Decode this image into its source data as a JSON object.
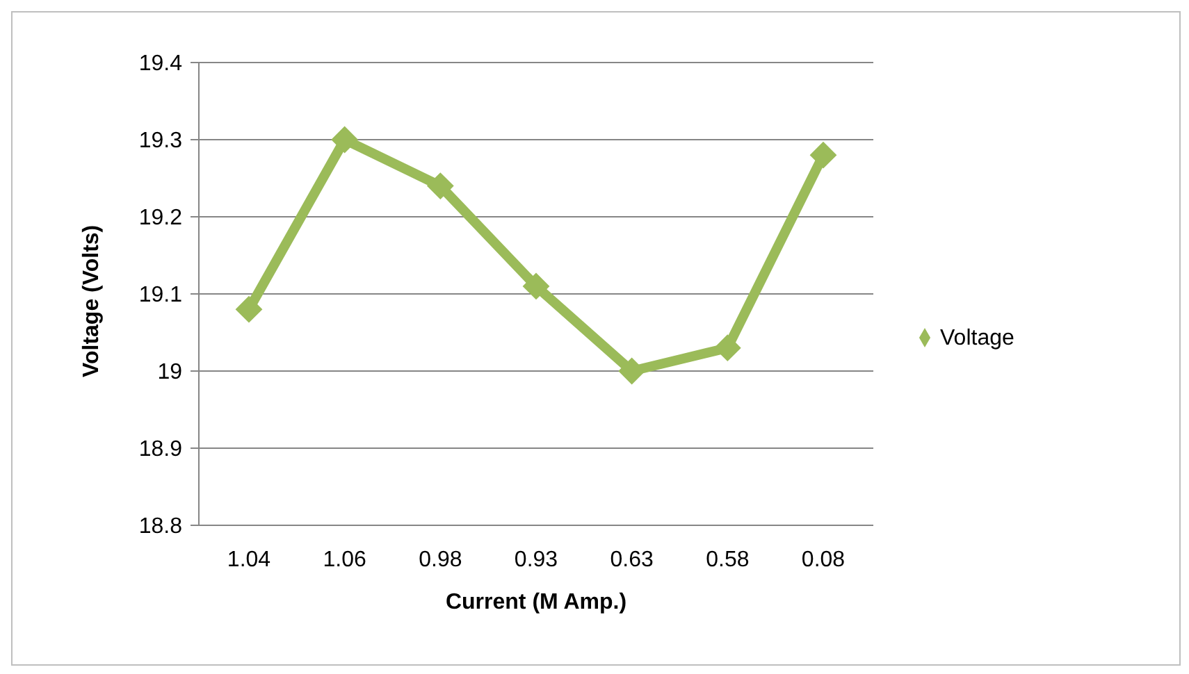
{
  "chart_data": {
    "type": "line",
    "xlabel": "Current (M Amp.)",
    "ylabel": "Voltage (Volts)",
    "categories": [
      "1.04",
      "1.06",
      "0.98",
      "0.93",
      "0.63",
      "0.58",
      "0.08"
    ],
    "series": [
      {
        "name": "Voltage",
        "color": "#9bbb59",
        "values": [
          19.08,
          19.3,
          19.24,
          19.11,
          19.0,
          19.03,
          19.28
        ]
      }
    ],
    "ylim": [
      18.8,
      19.4
    ],
    "yticks": [
      18.8,
      18.9,
      {
        "value": 19,
        "label": "19"
      },
      19.1,
      19.2,
      19.3,
      19.4
    ],
    "grid": "y",
    "legend": "right",
    "marker": "diamond",
    "line_style": "solid"
  }
}
